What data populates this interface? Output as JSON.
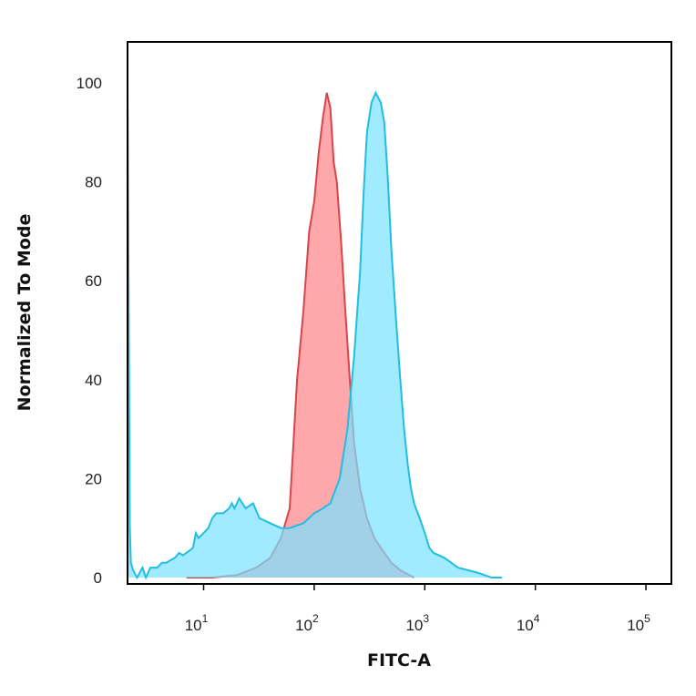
{
  "chart_data": {
    "type": "area",
    "title": "",
    "xlabel": "FITC-A",
    "ylabel": "Normalized To Mode",
    "x_scale": "log",
    "xlim": [
      2.05,
      170000
    ],
    "ylim": [
      0,
      105
    ],
    "y_ticks": [
      "0",
      "20",
      "40",
      "60",
      "80",
      "100"
    ],
    "x_ticks": [
      {
        "value": 10,
        "base": "10",
        "exp": "1"
      },
      {
        "value": 100,
        "base": "10",
        "exp": "2"
      },
      {
        "value": 1000,
        "base": "10",
        "exp": "3"
      },
      {
        "value": 10000,
        "base": "10",
        "exp": "4"
      },
      {
        "value": 100000,
        "base": "10",
        "exp": "5"
      }
    ],
    "grid": false,
    "legend": "none",
    "series": [
      {
        "color_fill": "#ff9fa3",
        "color_line": "#d9444c",
        "points": [
          [
            7,
            0
          ],
          [
            12,
            0
          ],
          [
            20,
            0.5
          ],
          [
            30,
            2
          ],
          [
            40,
            4
          ],
          [
            50,
            8
          ],
          [
            60,
            14
          ],
          [
            70,
            40
          ],
          [
            80,
            54
          ],
          [
            90,
            70
          ],
          [
            100,
            76
          ],
          [
            110,
            86
          ],
          [
            120,
            93
          ],
          [
            130,
            98
          ],
          [
            140,
            95
          ],
          [
            150,
            84
          ],
          [
            160,
            80
          ],
          [
            175,
            68
          ],
          [
            190,
            55
          ],
          [
            210,
            40
          ],
          [
            230,
            27
          ],
          [
            260,
            18
          ],
          [
            300,
            12
          ],
          [
            350,
            8
          ],
          [
            400,
            6
          ],
          [
            500,
            3
          ],
          [
            600,
            1.5
          ],
          [
            800,
            0
          ]
        ]
      },
      {
        "color_fill": "#77e3ff",
        "color_line": "#22bde0",
        "points": [
          [
            2.05,
            100
          ],
          [
            2.15,
            10
          ],
          [
            2.2,
            3
          ],
          [
            2.3,
            1.5
          ],
          [
            2.5,
            0
          ],
          [
            2.8,
            2
          ],
          [
            3,
            0
          ],
          [
            3.3,
            2
          ],
          [
            3.8,
            2
          ],
          [
            4.2,
            3
          ],
          [
            4.6,
            3
          ],
          [
            5,
            3.5
          ],
          [
            5.5,
            4
          ],
          [
            6,
            5
          ],
          [
            6.5,
            4.5
          ],
          [
            7.5,
            5.5
          ],
          [
            8,
            6
          ],
          [
            8.5,
            9
          ],
          [
            9,
            8
          ],
          [
            10,
            9
          ],
          [
            11,
            10
          ],
          [
            12,
            12
          ],
          [
            13,
            13
          ],
          [
            15,
            13
          ],
          [
            17,
            14
          ],
          [
            18,
            15
          ],
          [
            19,
            14
          ],
          [
            21,
            16
          ],
          [
            24,
            14
          ],
          [
            28,
            15
          ],
          [
            32,
            12
          ],
          [
            40,
            11
          ],
          [
            50,
            10
          ],
          [
            60,
            10
          ],
          [
            80,
            11
          ],
          [
            100,
            13
          ],
          [
            120,
            14
          ],
          [
            140,
            15
          ],
          [
            170,
            20
          ],
          [
            200,
            30
          ],
          [
            230,
            45
          ],
          [
            260,
            62
          ],
          [
            280,
            78
          ],
          [
            300,
            90
          ],
          [
            330,
            96
          ],
          [
            360,
            98
          ],
          [
            400,
            96
          ],
          [
            430,
            92
          ],
          [
            460,
            82
          ],
          [
            500,
            66
          ],
          [
            550,
            52
          ],
          [
            600,
            40
          ],
          [
            650,
            30
          ],
          [
            700,
            23
          ],
          [
            750,
            18
          ],
          [
            800,
            15
          ],
          [
            900,
            12
          ],
          [
            1000,
            9
          ],
          [
            1100,
            6
          ],
          [
            1200,
            5
          ],
          [
            1500,
            4
          ],
          [
            2000,
            2
          ],
          [
            3000,
            1
          ],
          [
            4000,
            0
          ],
          [
            5000,
            0
          ]
        ]
      }
    ]
  }
}
